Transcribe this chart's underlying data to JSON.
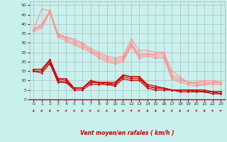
{
  "background_color": "#c8f0ec",
  "grid_color": "#b0b0b0",
  "xlabel": "Vent moyen/en rafales ( km/h )",
  "xlabel_color": "#cc0000",
  "ylim": [
    0,
    52
  ],
  "xlim": [
    -0.5,
    23.5
  ],
  "yticks": [
    0,
    5,
    10,
    15,
    20,
    25,
    30,
    35,
    40,
    45,
    50
  ],
  "xticks": [
    0,
    1,
    2,
    3,
    4,
    5,
    6,
    7,
    8,
    9,
    10,
    11,
    12,
    13,
    14,
    15,
    16,
    17,
    18,
    19,
    20,
    21,
    22,
    23
  ],
  "series": [
    {
      "x": [
        0,
        1,
        2,
        3,
        4,
        5,
        6,
        7,
        8,
        9,
        10,
        11,
        12,
        13,
        14,
        15,
        16,
        17,
        18,
        19,
        20,
        21,
        22,
        23
      ],
      "y": [
        37,
        48,
        47,
        35,
        33,
        32,
        30,
        27,
        25,
        23,
        22,
        23,
        32,
        26,
        26,
        25,
        25,
        15,
        12,
        9,
        9,
        10,
        10,
        9
      ],
      "color": "#ff9090",
      "lw": 0.8,
      "marker": "D",
      "ms": 1.5
    },
    {
      "x": [
        0,
        1,
        2,
        3,
        4,
        5,
        6,
        7,
        8,
        9,
        10,
        11,
        12,
        13,
        14,
        15,
        16,
        17,
        18,
        19,
        20,
        21,
        22,
        23
      ],
      "y": [
        37,
        40,
        47,
        34,
        33,
        31,
        29,
        26,
        24,
        22,
        21,
        22,
        30,
        24,
        24,
        24,
        24,
        13,
        11,
        9,
        9,
        9,
        9,
        9
      ],
      "color": "#ff9090",
      "lw": 0.8,
      "marker": "D",
      "ms": 1.5
    },
    {
      "x": [
        0,
        1,
        2,
        3,
        4,
        5,
        6,
        7,
        8,
        9,
        10,
        11,
        12,
        13,
        14,
        15,
        16,
        17,
        18,
        19,
        20,
        21,
        22,
        23
      ],
      "y": [
        37,
        39,
        47,
        34,
        32,
        30,
        28,
        26,
        23,
        21,
        20,
        21,
        29,
        23,
        24,
        23,
        23,
        12,
        10,
        9,
        8,
        8,
        9,
        9
      ],
      "color": "#ff9090",
      "lw": 0.8,
      "marker": "D",
      "ms": 1.5
    },
    {
      "x": [
        0,
        1,
        2,
        3,
        4,
        5,
        6,
        7,
        8,
        9,
        10,
        11,
        12,
        13,
        14,
        15,
        16,
        17,
        18,
        19,
        20,
        21,
        22,
        23
      ],
      "y": [
        36,
        38,
        46,
        33,
        31,
        29,
        27,
        25,
        22,
        20,
        19,
        20,
        28,
        22,
        23,
        22,
        22,
        11,
        9,
        8,
        7,
        8,
        8,
        8
      ],
      "color": "#ff9090",
      "lw": 0.8,
      "marker": "D",
      "ms": 1.5
    },
    {
      "x": [
        0,
        1,
        2,
        3,
        4,
        5,
        6,
        7,
        8,
        9,
        10,
        11,
        12,
        13,
        14,
        15,
        16,
        17,
        18,
        19,
        20,
        21,
        22,
        23
      ],
      "y": [
        16,
        16,
        21,
        11,
        11,
        6,
        6,
        10,
        9,
        9,
        9,
        13,
        12,
        12,
        8,
        7,
        6,
        5,
        5,
        5,
        5,
        5,
        4,
        4
      ],
      "color": "#cc0000",
      "lw": 0.9,
      "marker": "D",
      "ms": 1.5
    },
    {
      "x": [
        0,
        1,
        2,
        3,
        4,
        5,
        6,
        7,
        8,
        9,
        10,
        11,
        12,
        13,
        14,
        15,
        16,
        17,
        18,
        19,
        20,
        21,
        22,
        23
      ],
      "y": [
        16,
        16,
        21,
        11,
        10,
        6,
        6,
        9,
        9,
        9,
        8,
        13,
        12,
        12,
        7,
        6,
        6,
        5,
        5,
        5,
        5,
        4,
        4,
        4
      ],
      "color": "#cc0000",
      "lw": 0.9,
      "marker": "D",
      "ms": 1.5
    },
    {
      "x": [
        0,
        1,
        2,
        3,
        4,
        5,
        6,
        7,
        8,
        9,
        10,
        11,
        12,
        13,
        14,
        15,
        16,
        17,
        18,
        19,
        20,
        21,
        22,
        23
      ],
      "y": [
        15,
        15,
        20,
        10,
        9,
        6,
        6,
        9,
        9,
        8,
        8,
        12,
        11,
        11,
        7,
        6,
        6,
        5,
        5,
        5,
        4,
        4,
        4,
        3
      ],
      "color": "#cc0000",
      "lw": 0.9,
      "marker": "D",
      "ms": 1.5
    },
    {
      "x": [
        0,
        1,
        2,
        3,
        4,
        5,
        6,
        7,
        8,
        9,
        10,
        11,
        12,
        13,
        14,
        15,
        16,
        17,
        18,
        19,
        20,
        21,
        22,
        23
      ],
      "y": [
        15,
        14,
        19,
        9,
        9,
        5,
        5,
        8,
        8,
        8,
        7,
        11,
        10,
        10,
        6,
        5,
        5,
        5,
        4,
        4,
        4,
        4,
        3,
        3
      ],
      "color": "#cc0000",
      "lw": 0.9,
      "marker": "D",
      "ms": 1.5
    }
  ],
  "arrow_angles": [
    90,
    70,
    90,
    45,
    60,
    225,
    200,
    180,
    200,
    225,
    90,
    70,
    45,
    180,
    90,
    90,
    225,
    225,
    90,
    70,
    45,
    90,
    45,
    45
  ]
}
